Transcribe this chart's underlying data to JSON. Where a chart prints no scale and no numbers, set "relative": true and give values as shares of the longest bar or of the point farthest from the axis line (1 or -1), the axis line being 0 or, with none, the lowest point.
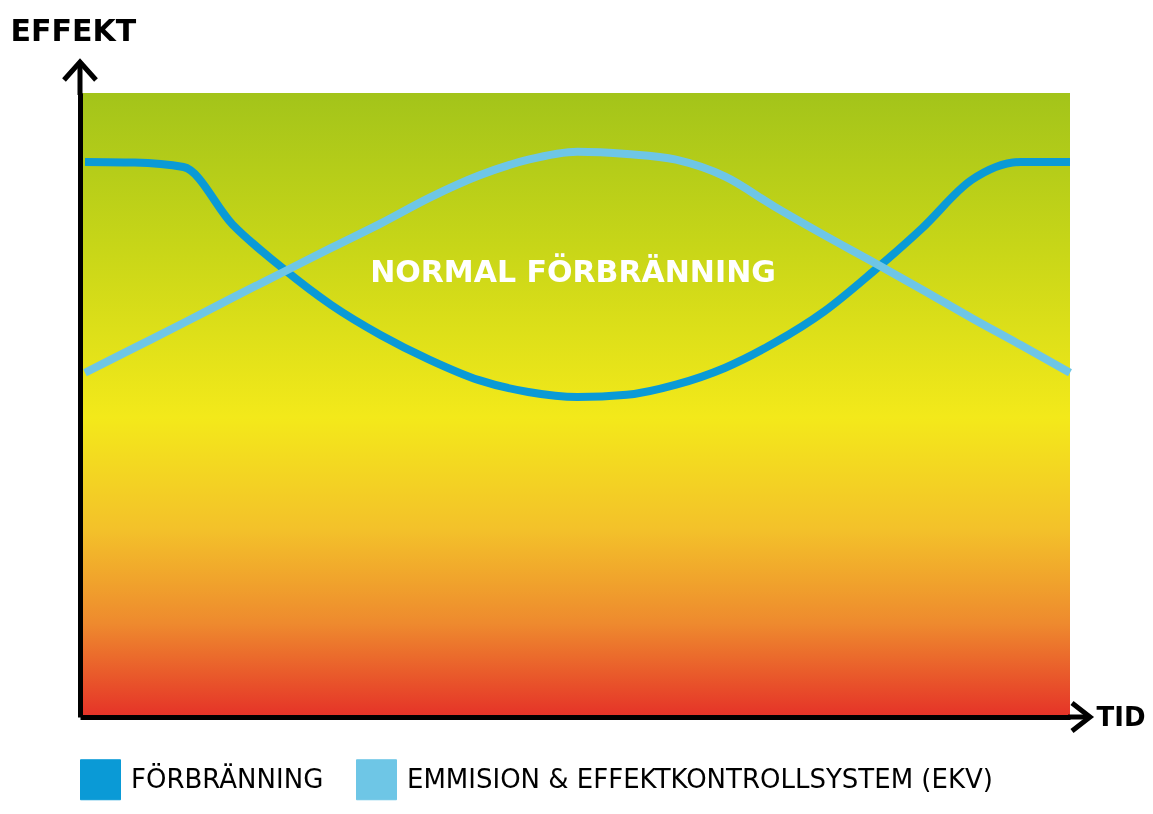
{
  "chart_data": {
    "type": "line",
    "relative": true,
    "xlabel": "TID",
    "ylabel": "EFFEKT",
    "annotations": [
      "NORMAL FÖRBRÄNNING"
    ],
    "categories": [
      null,
      null,
      null,
      null,
      null,
      null,
      null,
      null,
      null,
      null,
      null,
      null,
      null,
      null,
      null,
      null,
      null,
      null,
      null,
      null,
      null
    ],
    "series": [
      {
        "name": "FÖRBRÄNNING",
        "color": "#0a9ad6",
        "values": [
          0.982,
          0.981,
          0.973,
          0.871,
          0.795,
          0.729,
          0.676,
          0.632,
          0.596,
          0.575,
          0.566,
          0.57,
          0.588,
          0.618,
          0.662,
          0.717,
          0.788,
          0.865,
          0.95,
          0.982,
          0.982
        ]
      },
      {
        "name": "EMMISION & EFFEKTKONTROLLSYSTEM (EKV)",
        "color": "#6ec6e6",
        "values": [
          0.609,
          0.653,
          0.697,
          0.742,
          0.786,
          0.83,
          0.873,
          0.919,
          0.958,
          0.986,
          1.0,
          0.996,
          0.986,
          0.956,
          0.903,
          0.853,
          0.805,
          0.756,
          0.706,
          0.658,
          0.609
        ]
      }
    ],
    "legend": "bottom",
    "marker": "none",
    "line_style": "solid",
    "grid": false
  }
}
